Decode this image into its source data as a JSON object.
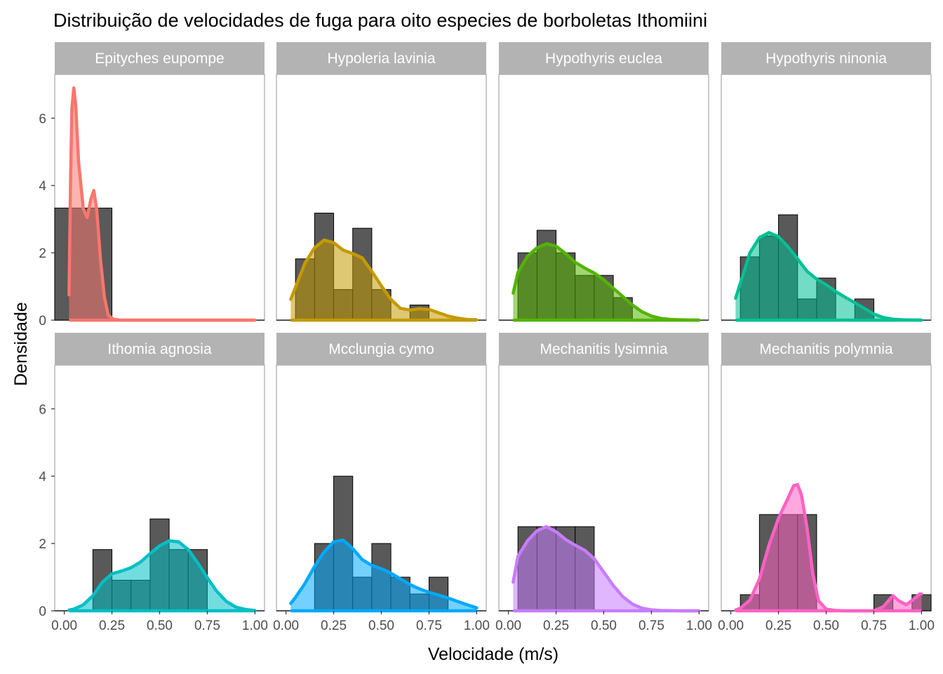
{
  "chart_data": {
    "type": "histogram-density-facets",
    "title": "Distribuição de velocidades de fuga para oito especies de borboletas Ithomiini",
    "xlabel": "Velocidade (m/s)",
    "ylabel": "Densidade",
    "xlim": [
      -0.05,
      1.05
    ],
    "ylim": [
      0,
      7.3
    ],
    "x_ticks": [
      0,
      0.25,
      0.5,
      0.75,
      1
    ],
    "x_tick_labels": [
      "0.00",
      "0.25",
      "0.50",
      "0.75",
      "1.00"
    ],
    "y_ticks": [
      0,
      2,
      4,
      6
    ],
    "y_tick_labels": [
      "0",
      "2",
      "4",
      "6"
    ],
    "grid": false,
    "bar_color": "#595959",
    "panel_border_color": "#b3b3b3",
    "strip_fill": "#b3b3b3",
    "panels": [
      {
        "name": "Epityches eupompe",
        "color": "#F8766D",
        "bars": [
          {
            "x0": -0.05,
            "x1": 0.25,
            "y": 3.33
          }
        ],
        "density": [
          [
            0.025,
            0.75
          ],
          [
            0.033,
            4.2
          ],
          [
            0.04,
            6.3
          ],
          [
            0.05,
            6.9
          ],
          [
            0.06,
            6.4
          ],
          [
            0.075,
            4.7
          ],
          [
            0.1,
            3.3
          ],
          [
            0.12,
            3.05
          ],
          [
            0.14,
            3.6
          ],
          [
            0.155,
            3.85
          ],
          [
            0.17,
            3.3
          ],
          [
            0.19,
            1.8
          ],
          [
            0.21,
            0.7
          ],
          [
            0.23,
            0.15
          ],
          [
            0.26,
            0.02
          ],
          [
            0.3,
            0
          ],
          [
            0.6,
            0
          ],
          [
            1.0,
            0
          ]
        ]
      },
      {
        "name": "Hypoleria lavinia",
        "color": "#C49A00",
        "bars": [
          {
            "x0": 0.05,
            "x1": 0.15,
            "y": 1.82
          },
          {
            "x0": 0.15,
            "x1": 0.25,
            "y": 3.18
          },
          {
            "x0": 0.25,
            "x1": 0.35,
            "y": 0.91
          },
          {
            "x0": 0.35,
            "x1": 0.45,
            "y": 2.73
          },
          {
            "x0": 0.45,
            "x1": 0.55,
            "y": 0.91
          },
          {
            "x0": 0.55,
            "x1": 0.65,
            "y": 0
          },
          {
            "x0": 0.65,
            "x1": 0.75,
            "y": 0.45
          }
        ],
        "density": [
          [
            0.025,
            0.62
          ],
          [
            0.05,
            0.98
          ],
          [
            0.1,
            1.7
          ],
          [
            0.15,
            2.15
          ],
          [
            0.2,
            2.38
          ],
          [
            0.25,
            2.3
          ],
          [
            0.3,
            2.08
          ],
          [
            0.35,
            1.98
          ],
          [
            0.4,
            1.85
          ],
          [
            0.45,
            1.45
          ],
          [
            0.5,
            1.02
          ],
          [
            0.55,
            0.62
          ],
          [
            0.6,
            0.35
          ],
          [
            0.65,
            0.3
          ],
          [
            0.7,
            0.34
          ],
          [
            0.75,
            0.32
          ],
          [
            0.8,
            0.22
          ],
          [
            0.85,
            0.12
          ],
          [
            0.9,
            0.06
          ],
          [
            0.95,
            0.02
          ],
          [
            1.0,
            0.01
          ]
        ]
      },
      {
        "name": "Hypothyris euclea",
        "color": "#53B400",
        "bars": [
          {
            "x0": 0.05,
            "x1": 0.15,
            "y": 2.0
          },
          {
            "x0": 0.15,
            "x1": 0.25,
            "y": 2.67
          },
          {
            "x0": 0.25,
            "x1": 0.35,
            "y": 2.0
          },
          {
            "x0": 0.35,
            "x1": 0.45,
            "y": 1.33
          },
          {
            "x0": 0.45,
            "x1": 0.55,
            "y": 1.33
          },
          {
            "x0": 0.55,
            "x1": 0.65,
            "y": 0.67
          }
        ],
        "density": [
          [
            0.025,
            0.8
          ],
          [
            0.05,
            1.42
          ],
          [
            0.1,
            1.9
          ],
          [
            0.15,
            2.15
          ],
          [
            0.2,
            2.27
          ],
          [
            0.25,
            2.2
          ],
          [
            0.3,
            1.98
          ],
          [
            0.35,
            1.72
          ],
          [
            0.4,
            1.55
          ],
          [
            0.45,
            1.4
          ],
          [
            0.5,
            1.2
          ],
          [
            0.55,
            0.95
          ],
          [
            0.6,
            0.7
          ],
          [
            0.65,
            0.45
          ],
          [
            0.7,
            0.25
          ],
          [
            0.75,
            0.12
          ],
          [
            0.8,
            0.05
          ],
          [
            0.85,
            0.02
          ],
          [
            0.9,
            0.01
          ],
          [
            1.0,
            0.0
          ]
        ]
      },
      {
        "name": "Hypothyris ninonia",
        "color": "#00C094",
        "bars": [
          {
            "x0": 0.05,
            "x1": 0.15,
            "y": 1.88
          },
          {
            "x0": 0.15,
            "x1": 0.25,
            "y": 2.5
          },
          {
            "x0": 0.25,
            "x1": 0.35,
            "y": 3.13
          },
          {
            "x0": 0.35,
            "x1": 0.45,
            "y": 0.63
          },
          {
            "x0": 0.45,
            "x1": 0.55,
            "y": 1.25
          },
          {
            "x0": 0.55,
            "x1": 0.65,
            "y": 0
          },
          {
            "x0": 0.65,
            "x1": 0.75,
            "y": 0.63
          }
        ],
        "density": [
          [
            0.025,
            0.65
          ],
          [
            0.05,
            1.1
          ],
          [
            0.1,
            2.0
          ],
          [
            0.15,
            2.45
          ],
          [
            0.2,
            2.6
          ],
          [
            0.25,
            2.48
          ],
          [
            0.3,
            2.18
          ],
          [
            0.35,
            1.82
          ],
          [
            0.4,
            1.45
          ],
          [
            0.45,
            1.22
          ],
          [
            0.5,
            1.05
          ],
          [
            0.55,
            0.85
          ],
          [
            0.6,
            0.68
          ],
          [
            0.65,
            0.52
          ],
          [
            0.7,
            0.35
          ],
          [
            0.75,
            0.18
          ],
          [
            0.8,
            0.08
          ],
          [
            0.85,
            0.03
          ],
          [
            0.9,
            0.01
          ],
          [
            1.0,
            0.0
          ]
        ]
      },
      {
        "name": "Ithomia agnosia",
        "color": "#00B6EB",
        "stroke": "#00BFC4",
        "bars": [
          {
            "x0": 0.15,
            "x1": 0.25,
            "y": 1.82
          },
          {
            "x0": 0.25,
            "x1": 0.35,
            "y": 0.91
          },
          {
            "x0": 0.35,
            "x1": 0.45,
            "y": 0.91
          },
          {
            "x0": 0.45,
            "x1": 0.55,
            "y": 2.73
          },
          {
            "x0": 0.55,
            "x1": 0.65,
            "y": 1.82
          },
          {
            "x0": 0.65,
            "x1": 0.75,
            "y": 1.82
          }
        ],
        "density": [
          [
            0.025,
            0.02
          ],
          [
            0.05,
            0.05
          ],
          [
            0.1,
            0.18
          ],
          [
            0.15,
            0.45
          ],
          [
            0.2,
            0.85
          ],
          [
            0.25,
            1.1
          ],
          [
            0.3,
            1.18
          ],
          [
            0.35,
            1.28
          ],
          [
            0.4,
            1.45
          ],
          [
            0.45,
            1.7
          ],
          [
            0.5,
            1.93
          ],
          [
            0.55,
            2.08
          ],
          [
            0.6,
            2.05
          ],
          [
            0.65,
            1.82
          ],
          [
            0.7,
            1.42
          ],
          [
            0.75,
            0.98
          ],
          [
            0.8,
            0.58
          ],
          [
            0.85,
            0.28
          ],
          [
            0.9,
            0.11
          ],
          [
            0.95,
            0.04
          ],
          [
            1.0,
            0.01
          ]
        ]
      },
      {
        "name": "Mcclungia cymo",
        "color": "#00A9FF",
        "bars": [
          {
            "x0": 0.05,
            "x1": 0.15,
            "y": 0
          },
          {
            "x0": 0.15,
            "x1": 0.25,
            "y": 2.0
          },
          {
            "x0": 0.25,
            "x1": 0.35,
            "y": 4.0
          },
          {
            "x0": 0.35,
            "x1": 0.45,
            "y": 1.0
          },
          {
            "x0": 0.45,
            "x1": 0.55,
            "y": 2.0
          },
          {
            "x0": 0.55,
            "x1": 0.65,
            "y": 1.0
          },
          {
            "x0": 0.65,
            "x1": 0.75,
            "y": 0.5
          },
          {
            "x0": 0.75,
            "x1": 0.85,
            "y": 1.0
          }
        ],
        "density": [
          [
            0.025,
            0.22
          ],
          [
            0.05,
            0.4
          ],
          [
            0.1,
            0.82
          ],
          [
            0.15,
            1.32
          ],
          [
            0.2,
            1.75
          ],
          [
            0.25,
            2.05
          ],
          [
            0.3,
            2.1
          ],
          [
            0.35,
            1.85
          ],
          [
            0.4,
            1.52
          ],
          [
            0.45,
            1.35
          ],
          [
            0.5,
            1.25
          ],
          [
            0.55,
            1.12
          ],
          [
            0.6,
            0.95
          ],
          [
            0.65,
            0.78
          ],
          [
            0.7,
            0.65
          ],
          [
            0.75,
            0.55
          ],
          [
            0.8,
            0.47
          ],
          [
            0.85,
            0.38
          ],
          [
            0.9,
            0.28
          ],
          [
            0.95,
            0.18
          ],
          [
            1.0,
            0.09
          ]
        ]
      },
      {
        "name": "Mechanitis lysimnia",
        "color": "#C77CFF",
        "bars": [
          {
            "x0": 0.05,
            "x1": 0.15,
            "y": 2.5
          },
          {
            "x0": 0.15,
            "x1": 0.25,
            "y": 2.5
          },
          {
            "x0": 0.25,
            "x1": 0.35,
            "y": 2.5
          },
          {
            "x0": 0.35,
            "x1": 0.45,
            "y": 2.5
          }
        ],
        "density": [
          [
            0.025,
            0.85
          ],
          [
            0.05,
            1.62
          ],
          [
            0.1,
            2.08
          ],
          [
            0.15,
            2.38
          ],
          [
            0.2,
            2.5
          ],
          [
            0.25,
            2.35
          ],
          [
            0.3,
            2.12
          ],
          [
            0.35,
            1.95
          ],
          [
            0.4,
            1.8
          ],
          [
            0.45,
            1.55
          ],
          [
            0.5,
            1.15
          ],
          [
            0.55,
            0.75
          ],
          [
            0.6,
            0.42
          ],
          [
            0.65,
            0.2
          ],
          [
            0.7,
            0.08
          ],
          [
            0.75,
            0.03
          ],
          [
            0.8,
            0.01
          ],
          [
            0.9,
            0.0
          ],
          [
            1.0,
            0.0
          ]
        ]
      },
      {
        "name": "Mechanitis polymnia",
        "color": "#FF61C3",
        "bars": [
          {
            "x0": 0.05,
            "x1": 0.15,
            "y": 0.48
          },
          {
            "x0": 0.15,
            "x1": 0.25,
            "y": 2.86
          },
          {
            "x0": 0.25,
            "x1": 0.35,
            "y": 2.86
          },
          {
            "x0": 0.35,
            "x1": 0.45,
            "y": 2.86
          },
          {
            "x0": 0.75,
            "x1": 0.85,
            "y": 0.48
          },
          {
            "x0": 0.95,
            "x1": 1.05,
            "y": 0.48
          }
        ],
        "density": [
          [
            0.025,
            0.02
          ],
          [
            0.05,
            0.08
          ],
          [
            0.1,
            0.32
          ],
          [
            0.15,
            0.95
          ],
          [
            0.2,
            1.95
          ],
          [
            0.25,
            2.75
          ],
          [
            0.3,
            3.35
          ],
          [
            0.33,
            3.72
          ],
          [
            0.35,
            3.75
          ],
          [
            0.37,
            3.45
          ],
          [
            0.4,
            2.45
          ],
          [
            0.43,
            1.1
          ],
          [
            0.46,
            0.3
          ],
          [
            0.5,
            0.05
          ],
          [
            0.55,
            0.01
          ],
          [
            0.6,
            0
          ],
          [
            0.75,
            0
          ],
          [
            0.8,
            0.12
          ],
          [
            0.85,
            0.45
          ],
          [
            0.88,
            0.3
          ],
          [
            0.92,
            0.18
          ],
          [
            0.96,
            0.35
          ],
          [
            0.99,
            0.5
          ],
          [
            1.0,
            0.5
          ]
        ]
      }
    ]
  }
}
